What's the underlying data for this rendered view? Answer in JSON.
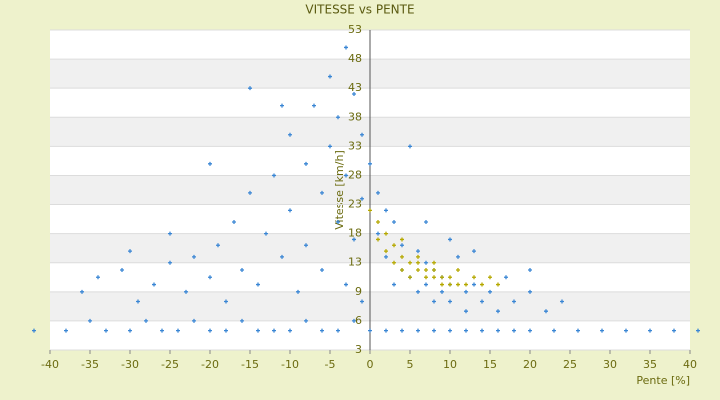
{
  "chart_data": {
    "type": "scatter",
    "title": "VITESSE vs PENTE",
    "x_label": "Pente [%]",
    "y_label": "Vitesse [km/h]",
    "xlim": [
      -40,
      40
    ],
    "xticks": [
      -40,
      -35,
      -30,
      -25,
      -20,
      -15,
      -10,
      -5,
      0,
      5,
      10,
      15,
      20,
      25,
      30,
      35,
      40
    ],
    "ylim": [
      3,
      53
    ],
    "yticks": [
      53,
      48,
      43,
      38,
      33,
      28,
      23,
      18,
      13,
      9,
      6,
      3
    ],
    "grid": true,
    "series": [
      {
        "color": "#3a86d4",
        "x": [
          -42,
          -38,
          -35,
          -33,
          -30,
          -28,
          -26,
          -24,
          -22,
          -20,
          -18,
          -16,
          -14,
          -12,
          -10,
          -8,
          -6,
          -4,
          -2,
          0,
          2,
          4,
          6,
          8,
          10,
          12,
          14,
          16,
          18,
          20,
          23,
          26,
          29,
          32,
          35,
          38,
          41,
          -36,
          -34,
          -31,
          -29,
          -27,
          -25,
          -23,
          -22,
          -20,
          -19,
          -18,
          -17,
          -16,
          -15,
          -14,
          -13,
          -12,
          -11,
          -10,
          -10,
          -9,
          -8,
          -8,
          -7,
          -6,
          -6,
          -5,
          -5,
          -4,
          -4,
          -3,
          -3,
          -3,
          -2,
          -2,
          -1,
          -1,
          -1,
          -20,
          -15,
          -11,
          -25,
          -30,
          0,
          1,
          1,
          2,
          2,
          3,
          3,
          4,
          4,
          5,
          5,
          6,
          6,
          7,
          7,
          8,
          8,
          9,
          9,
          10,
          10,
          11,
          12,
          12,
          13,
          14,
          15,
          16,
          18,
          20,
          22,
          24,
          7,
          10,
          13,
          17,
          20
        ],
        "y": [
          5,
          5,
          6,
          5,
          5,
          6,
          5,
          5,
          6,
          5,
          5,
          6,
          5,
          5,
          5,
          6,
          5,
          5,
          6,
          5,
          5,
          5,
          5,
          5,
          5,
          5,
          5,
          5,
          5,
          5,
          5,
          5,
          5,
          5,
          5,
          5,
          5,
          9,
          11,
          12,
          8,
          10,
          13,
          9,
          14,
          11,
          16,
          8,
          20,
          12,
          25,
          10,
          18,
          28,
          14,
          22,
          35,
          9,
          30,
          16,
          40,
          25,
          12,
          45,
          33,
          20,
          38,
          50,
          28,
          10,
          42,
          17,
          35,
          24,
          8,
          30,
          43,
          40,
          18,
          15,
          30,
          25,
          18,
          22,
          14,
          20,
          10,
          16,
          12,
          33,
          11,
          15,
          9,
          13,
          10,
          12,
          8,
          11,
          9,
          10,
          8,
          14,
          9,
          7,
          10,
          8,
          9,
          7,
          8,
          9,
          7,
          8,
          20,
          17,
          15,
          11,
          12
        ]
      },
      {
        "color": "#b5a800",
        "x": [
          0,
          1,
          1,
          2,
          2,
          3,
          3,
          4,
          4,
          5,
          5,
          6,
          6,
          7,
          7,
          8,
          8,
          9,
          9,
          10,
          10,
          11,
          12,
          13,
          14,
          15,
          16,
          4,
          6,
          8,
          11
        ],
        "y": [
          22,
          20,
          17,
          18,
          15,
          16,
          13,
          14,
          12,
          13,
          11,
          12,
          13,
          11,
          12,
          11,
          12,
          10,
          11,
          11,
          10,
          10,
          10,
          11,
          10,
          11,
          10,
          17,
          14,
          13,
          12
        ]
      }
    ]
  }
}
